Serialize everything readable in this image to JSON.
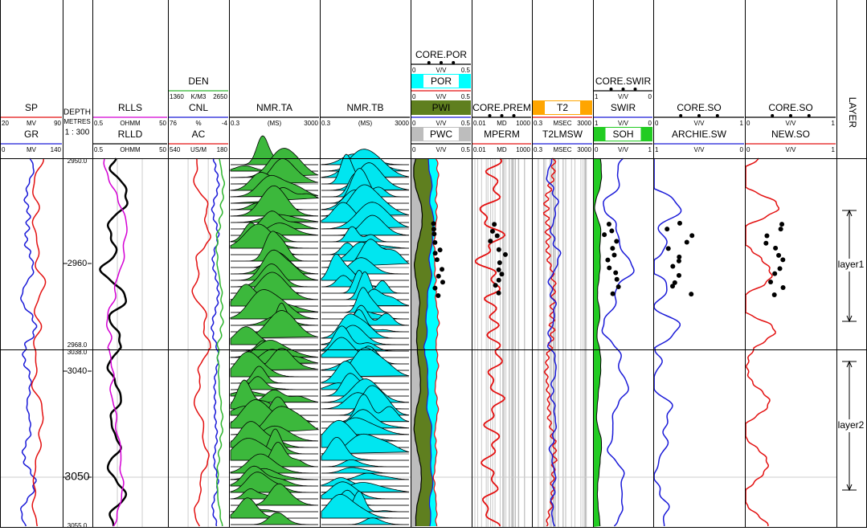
{
  "tracks": [
    {
      "headers": [
        {
          "name": "GR",
          "scale": [
            "0",
            "MV",
            "140"
          ],
          "color": "#1a1ad8"
        },
        {
          "name": "SP",
          "scale": [
            "20",
            "MV",
            "90"
          ],
          "color": "#e31010"
        }
      ]
    },
    {
      "headers": [
        {
          "name": "RLLD",
          "scale": [
            "0.5",
            "OHMM",
            "50"
          ],
          "color": "#000000"
        },
        {
          "name": "RLLS",
          "scale": [
            "0.5",
            "OHMM",
            "50"
          ],
          "color": "#d400d4"
        }
      ]
    },
    {
      "headers": [
        {
          "name": "AC",
          "scale": [
            "540",
            "US/M",
            "180"
          ],
          "color": "#e31010"
        },
        {
          "name": "CNL",
          "scale": [
            "76",
            "%",
            "-4"
          ],
          "color": "#1a1ad8"
        },
        {
          "name": "DEN",
          "scale": [
            "1360",
            "K/M3",
            "2650"
          ],
          "color": "#2db52d"
        }
      ]
    },
    {
      "headers": [
        {
          "name": "NMR.TA",
          "scale": [
            "0.3",
            "(MS)",
            "3000"
          ],
          "color": "#000000"
        }
      ]
    },
    {
      "headers": [
        {
          "name": "NMR.TB",
          "scale": [
            "0.3",
            "(MS)",
            "3000"
          ],
          "color": "#000000"
        }
      ]
    },
    {
      "headers": [
        {
          "name": "PWC",
          "scale": [
            "0",
            "V/V",
            "0.5"
          ],
          "color": "#000000",
          "fill": "#bdbdbd"
        },
        {
          "name": "PWI",
          "scale": [
            "0",
            "V/V",
            "0.5"
          ],
          "color": "#1a1ad8",
          "fill": "#5f7f1f"
        },
        {
          "name": "POR",
          "scale": [
            "0",
            "V/V",
            "0.5"
          ],
          "color": "#e31010",
          "fill": "#00ffff"
        },
        {
          "name": "CORE.POR",
          "scale": [
            "0",
            "V/V",
            "0.5"
          ],
          "color": "#000000"
        }
      ]
    },
    {
      "headers": [
        {
          "name": "MPERM",
          "scale": [
            "0.01",
            "MD",
            "1000"
          ],
          "color": "#e31010"
        },
        {
          "name": "CORE.PREM",
          "scale": [
            "0.01",
            "MD",
            "1000"
          ],
          "color": "#000000"
        }
      ]
    },
    {
      "headers": [
        {
          "name": "T2LMSW",
          "scale": [
            "0.3",
            "MSEC",
            "3000"
          ],
          "color": "#1a1ad8"
        },
        {
          "name": "T2",
          "scale": [
            "0.3",
            "MSEC",
            "3000"
          ],
          "color": "#e31010",
          "fill": "#ffa500"
        }
      ]
    },
    {
      "headers": [
        {
          "name": "SOH",
          "scale": [
            "0",
            "V/V",
            "1"
          ],
          "color": "#000000",
          "fill": "#22cc22"
        },
        {
          "name": "SWIR",
          "scale": [
            "1",
            "V/V",
            "0"
          ],
          "color": "#1a1ad8"
        },
        {
          "name": "CORE.SWIR",
          "scale": [
            "1",
            "V/V",
            "0"
          ],
          "color": "#000000"
        }
      ]
    },
    {
      "headers": [
        {
          "name": "ARCHIE.SW",
          "scale": [
            "1",
            "V/V",
            "0"
          ],
          "color": "#1a1ad8"
        },
        {
          "name": "CORE.SO",
          "scale": [
            "0",
            "V/V",
            "1"
          ],
          "color": "#000000"
        }
      ]
    },
    {
      "headers": [
        {
          "name": "NEW.SO",
          "scale": [
            "0",
            "V/V",
            "1"
          ],
          "color": "#e31010"
        },
        {
          "name": "CORE.SO",
          "scale": [
            "0",
            "V/V",
            "1"
          ],
          "color": "#000000"
        }
      ]
    }
  ],
  "depth": {
    "title": "DEPTH",
    "unit": "METRES",
    "scale": "1 : 300",
    "labels": [
      "2950.0",
      "2960",
      "2968.0",
      "3038.0",
      "3040",
      "3050",
      "3055.0"
    ]
  },
  "layer": {
    "title": "LAYER",
    "names": [
      "layer1",
      "layer2"
    ]
  }
}
